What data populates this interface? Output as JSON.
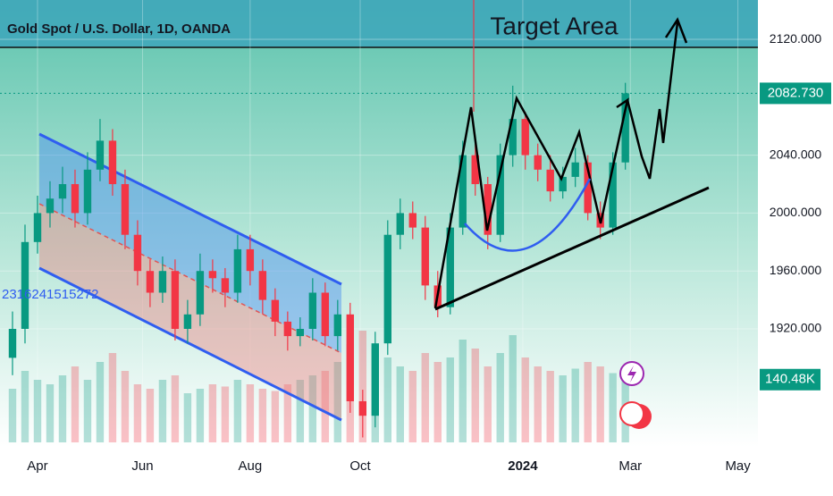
{
  "chart_data": {
    "type": "candlestick",
    "title": "Gold Spot / U.S. Dollar, 1D, OANDA",
    "annotations": [
      "Target Area",
      "2316241515272"
    ],
    "last_price": {
      "value": 2082.73,
      "label": "2082.730"
    },
    "last_volume": {
      "value": 140.48,
      "label": "140.48K"
    },
    "categories": [
      null,
      null,
      null,
      null,
      null,
      null,
      null,
      null,
      null,
      null,
      null,
      null,
      null,
      null,
      null,
      null,
      null,
      null,
      null,
      null,
      null,
      null,
      null,
      null,
      null,
      null,
      null,
      null,
      null,
      null,
      null,
      null,
      null,
      null,
      null,
      null,
      null,
      null,
      null,
      null,
      null,
      null,
      null,
      null,
      null,
      null,
      null,
      null,
      null,
      null
    ],
    "open": [
      1900,
      1920,
      1980,
      2000,
      2010,
      2020,
      2000,
      2030,
      2050,
      2020,
      1985,
      1960,
      1945,
      1960,
      1920,
      1930,
      1960,
      1955,
      1945,
      1975,
      1960,
      1940,
      1925,
      1915,
      1920,
      1945,
      1915,
      1930,
      1870,
      1860,
      1910,
      1985,
      2000,
      1990,
      1950,
      1935,
      1990,
      2040,
      2020,
      1985,
      2040,
      2065,
      2040,
      2030,
      2015,
      2025,
      2035,
      2000,
      1990,
      2035
    ],
    "high": [
      1932,
      1992,
      2012,
      2022,
      2032,
      2030,
      2042,
      2065,
      2058,
      2030,
      1995,
      1968,
      1970,
      1968,
      1940,
      1972,
      1968,
      1962,
      1985,
      1985,
      1968,
      1948,
      1932,
      1928,
      1955,
      1952,
      1940,
      1938,
      1878,
      1918,
      1995,
      2010,
      2008,
      1998,
      1960,
      2000,
      2050,
      2048,
      2025,
      2048,
      2088,
      2070,
      2048,
      2040,
      2032,
      2045,
      2040,
      2008,
      2042,
      2090
    ],
    "low": [
      1888,
      1910,
      1972,
      1990,
      2000,
      1990,
      1992,
      2022,
      2012,
      1975,
      1950,
      1935,
      1938,
      1912,
      1910,
      1922,
      1945,
      1935,
      1938,
      1950,
      1930,
      1915,
      1905,
      1908,
      1912,
      1908,
      1905,
      1862,
      1845,
      1852,
      1902,
      1975,
      1982,
      1940,
      1928,
      1930,
      1985,
      2012,
      1975,
      1980,
      2032,
      2030,
      2022,
      2008,
      2010,
      2018,
      1995,
      1982,
      1985,
      2030
    ],
    "close": [
      1920,
      1980,
      2000,
      2010,
      2020,
      2000,
      2030,
      2050,
      2020,
      1985,
      1960,
      1945,
      1960,
      1920,
      1930,
      1960,
      1955,
      1945,
      1975,
      1960,
      1940,
      1925,
      1915,
      1920,
      1945,
      1915,
      1930,
      1870,
      1860,
      1910,
      1985,
      2000,
      1990,
      1950,
      1935,
      1990,
      2040,
      2020,
      1985,
      2040,
      2065,
      2040,
      2030,
      2015,
      2025,
      2035,
      2000,
      1990,
      2035,
      2082.73
    ],
    "volume": [
      120,
      160,
      140,
      130,
      150,
      170,
      140,
      180,
      200,
      160,
      130,
      120,
      140,
      150,
      110,
      120,
      130,
      125,
      140,
      130,
      120,
      115,
      130,
      140,
      150,
      160,
      180,
      220,
      250,
      210,
      190,
      170,
      160,
      200,
      180,
      190,
      230,
      210,
      170,
      200,
      240,
      190,
      170,
      160,
      150,
      165,
      180,
      170,
      155,
      140.48
    ],
    "up_color": "#089981",
    "down_color": "#f23645",
    "volume_lim": [
      0,
      990
    ],
    "xlim": [
      -1,
      59.6
    ],
    "xticks": [
      {
        "value": 2,
        "label": "Apr"
      },
      {
        "value": 10.4,
        "label": "Jun"
      },
      {
        "value": 19,
        "label": "Aug"
      },
      {
        "value": 27.8,
        "label": "Oct"
      },
      {
        "value": 40.8,
        "label": "2024"
      },
      {
        "value": 49.4,
        "label": "Mar"
      },
      {
        "value": 58,
        "label": "May"
      }
    ],
    "ylim": [
      1838.5,
      2147.2
    ],
    "yticks": [
      {
        "value": 1920,
        "label": "1920.000"
      },
      {
        "value": 1960,
        "label": "1960.000"
      },
      {
        "value": 2000,
        "label": "2000.000"
      },
      {
        "value": 2040,
        "label": "2040.000"
      },
      {
        "value": 2120,
        "label": "2120.000"
      }
    ],
    "grid": true
  }
}
